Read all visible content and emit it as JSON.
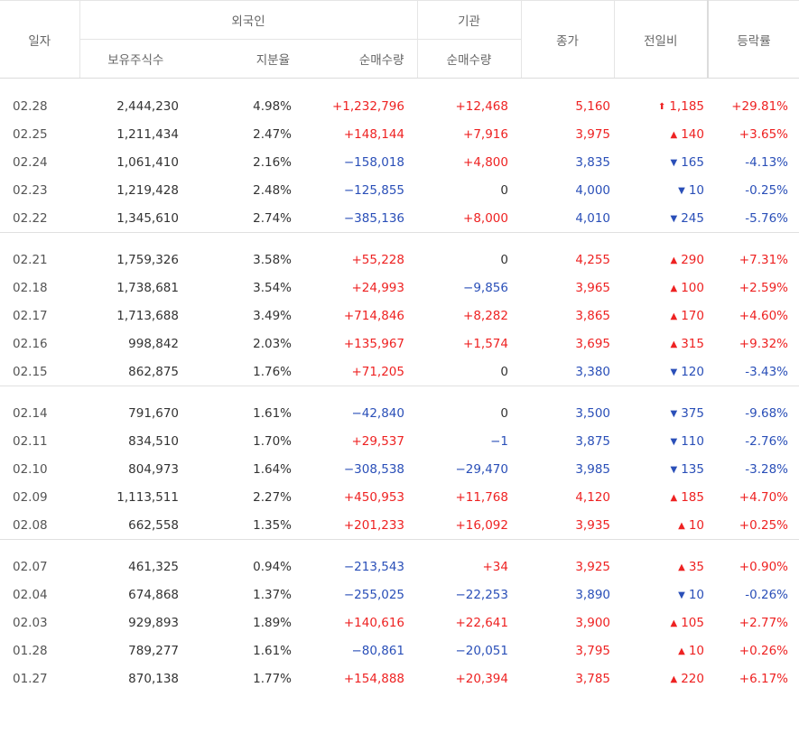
{
  "header": {
    "date": "일자",
    "foreign": "외국인",
    "institution": "기관",
    "holdings": "보유주식수",
    "ratio": "지분율",
    "foreign_net": "순매수량",
    "inst_net": "순매수량",
    "close": "종가",
    "change": "전일비",
    "rate": "등락률"
  },
  "groups": [
    [
      {
        "date": "02.28",
        "holdings": "2,444,230",
        "ratio": "4.98%",
        "fnet": "+1,232,796",
        "inet": "+12,468",
        "close": "5,160",
        "arrow": "⬆",
        "change": "1,185",
        "rate": "+29.81%",
        "dir": "up",
        "fdir": "r",
        "idir": "r",
        "cdir": "r"
      },
      {
        "date": "02.25",
        "holdings": "1,211,434",
        "ratio": "2.47%",
        "fnet": "+148,144",
        "inet": "+7,916",
        "close": "3,975",
        "arrow": "▲",
        "change": "140",
        "rate": "+3.65%",
        "dir": "up",
        "fdir": "r",
        "idir": "r",
        "cdir": "r"
      },
      {
        "date": "02.24",
        "holdings": "1,061,410",
        "ratio": "2.16%",
        "fnet": "−158,018",
        "inet": "+4,800",
        "close": "3,835",
        "arrow": "▼",
        "change": "165",
        "rate": "-4.13%",
        "dir": "down",
        "fdir": "b",
        "idir": "r",
        "cdir": "b"
      },
      {
        "date": "02.23",
        "holdings": "1,219,428",
        "ratio": "2.48%",
        "fnet": "−125,855",
        "inet": "0",
        "close": "4,000",
        "arrow": "▼",
        "change": "10",
        "rate": "-0.25%",
        "dir": "down",
        "fdir": "b",
        "idir": "k",
        "cdir": "b"
      },
      {
        "date": "02.22",
        "holdings": "1,345,610",
        "ratio": "2.74%",
        "fnet": "−385,136",
        "inet": "+8,000",
        "close": "4,010",
        "arrow": "▼",
        "change": "245",
        "rate": "-5.76%",
        "dir": "down",
        "fdir": "b",
        "idir": "r",
        "cdir": "b"
      }
    ],
    [
      {
        "date": "02.21",
        "holdings": "1,759,326",
        "ratio": "3.58%",
        "fnet": "+55,228",
        "inet": "0",
        "close": "4,255",
        "arrow": "▲",
        "change": "290",
        "rate": "+7.31%",
        "dir": "up",
        "fdir": "r",
        "idir": "k",
        "cdir": "r"
      },
      {
        "date": "02.18",
        "holdings": "1,738,681",
        "ratio": "3.54%",
        "fnet": "+24,993",
        "inet": "−9,856",
        "close": "3,965",
        "arrow": "▲",
        "change": "100",
        "rate": "+2.59%",
        "dir": "up",
        "fdir": "r",
        "idir": "b",
        "cdir": "r"
      },
      {
        "date": "02.17",
        "holdings": "1,713,688",
        "ratio": "3.49%",
        "fnet": "+714,846",
        "inet": "+8,282",
        "close": "3,865",
        "arrow": "▲",
        "change": "170",
        "rate": "+4.60%",
        "dir": "up",
        "fdir": "r",
        "idir": "r",
        "cdir": "r"
      },
      {
        "date": "02.16",
        "holdings": "998,842",
        "ratio": "2.03%",
        "fnet": "+135,967",
        "inet": "+1,574",
        "close": "3,695",
        "arrow": "▲",
        "change": "315",
        "rate": "+9.32%",
        "dir": "up",
        "fdir": "r",
        "idir": "r",
        "cdir": "r"
      },
      {
        "date": "02.15",
        "holdings": "862,875",
        "ratio": "1.76%",
        "fnet": "+71,205",
        "inet": "0",
        "close": "3,380",
        "arrow": "▼",
        "change": "120",
        "rate": "-3.43%",
        "dir": "down",
        "fdir": "r",
        "idir": "k",
        "cdir": "b"
      }
    ],
    [
      {
        "date": "02.14",
        "holdings": "791,670",
        "ratio": "1.61%",
        "fnet": "−42,840",
        "inet": "0",
        "close": "3,500",
        "arrow": "▼",
        "change": "375",
        "rate": "-9.68%",
        "dir": "down",
        "fdir": "b",
        "idir": "k",
        "cdir": "b"
      },
      {
        "date": "02.11",
        "holdings": "834,510",
        "ratio": "1.70%",
        "fnet": "+29,537",
        "inet": "−1",
        "close": "3,875",
        "arrow": "▼",
        "change": "110",
        "rate": "-2.76%",
        "dir": "down",
        "fdir": "r",
        "idir": "b",
        "cdir": "b"
      },
      {
        "date": "02.10",
        "holdings": "804,973",
        "ratio": "1.64%",
        "fnet": "−308,538",
        "inet": "−29,470",
        "close": "3,985",
        "arrow": "▼",
        "change": "135",
        "rate": "-3.28%",
        "dir": "down",
        "fdir": "b",
        "idir": "b",
        "cdir": "b"
      },
      {
        "date": "02.09",
        "holdings": "1,113,511",
        "ratio": "2.27%",
        "fnet": "+450,953",
        "inet": "+11,768",
        "close": "4,120",
        "arrow": "▲",
        "change": "185",
        "rate": "+4.70%",
        "dir": "up",
        "fdir": "r",
        "idir": "r",
        "cdir": "r"
      },
      {
        "date": "02.08",
        "holdings": "662,558",
        "ratio": "1.35%",
        "fnet": "+201,233",
        "inet": "+16,092",
        "close": "3,935",
        "arrow": "▲",
        "change": "10",
        "rate": "+0.25%",
        "dir": "up",
        "fdir": "r",
        "idir": "r",
        "cdir": "r"
      }
    ],
    [
      {
        "date": "02.07",
        "holdings": "461,325",
        "ratio": "0.94%",
        "fnet": "−213,543",
        "inet": "+34",
        "close": "3,925",
        "arrow": "▲",
        "change": "35",
        "rate": "+0.90%",
        "dir": "up",
        "fdir": "b",
        "idir": "r",
        "cdir": "r"
      },
      {
        "date": "02.04",
        "holdings": "674,868",
        "ratio": "1.37%",
        "fnet": "−255,025",
        "inet": "−22,253",
        "close": "3,890",
        "arrow": "▼",
        "change": "10",
        "rate": "-0.26%",
        "dir": "down",
        "fdir": "b",
        "idir": "b",
        "cdir": "b"
      },
      {
        "date": "02.03",
        "holdings": "929,893",
        "ratio": "1.89%",
        "fnet": "+140,616",
        "inet": "+22,641",
        "close": "3,900",
        "arrow": "▲",
        "change": "105",
        "rate": "+2.77%",
        "dir": "up",
        "fdir": "r",
        "idir": "r",
        "cdir": "r"
      },
      {
        "date": "01.28",
        "holdings": "789,277",
        "ratio": "1.61%",
        "fnet": "−80,861",
        "inet": "−20,051",
        "close": "3,795",
        "arrow": "▲",
        "change": "10",
        "rate": "+0.26%",
        "dir": "up",
        "fdir": "b",
        "idir": "b",
        "cdir": "r"
      },
      {
        "date": "01.27",
        "holdings": "870,138",
        "ratio": "1.77%",
        "fnet": "+154,888",
        "inet": "+20,394",
        "close": "3,785",
        "arrow": "▲",
        "change": "220",
        "rate": "+6.17%",
        "dir": "up",
        "fdir": "r",
        "idir": "r",
        "cdir": "r"
      }
    ]
  ],
  "colors": {
    "up": "#e22",
    "down": "#2a4fb8",
    "neutral": "#333"
  }
}
